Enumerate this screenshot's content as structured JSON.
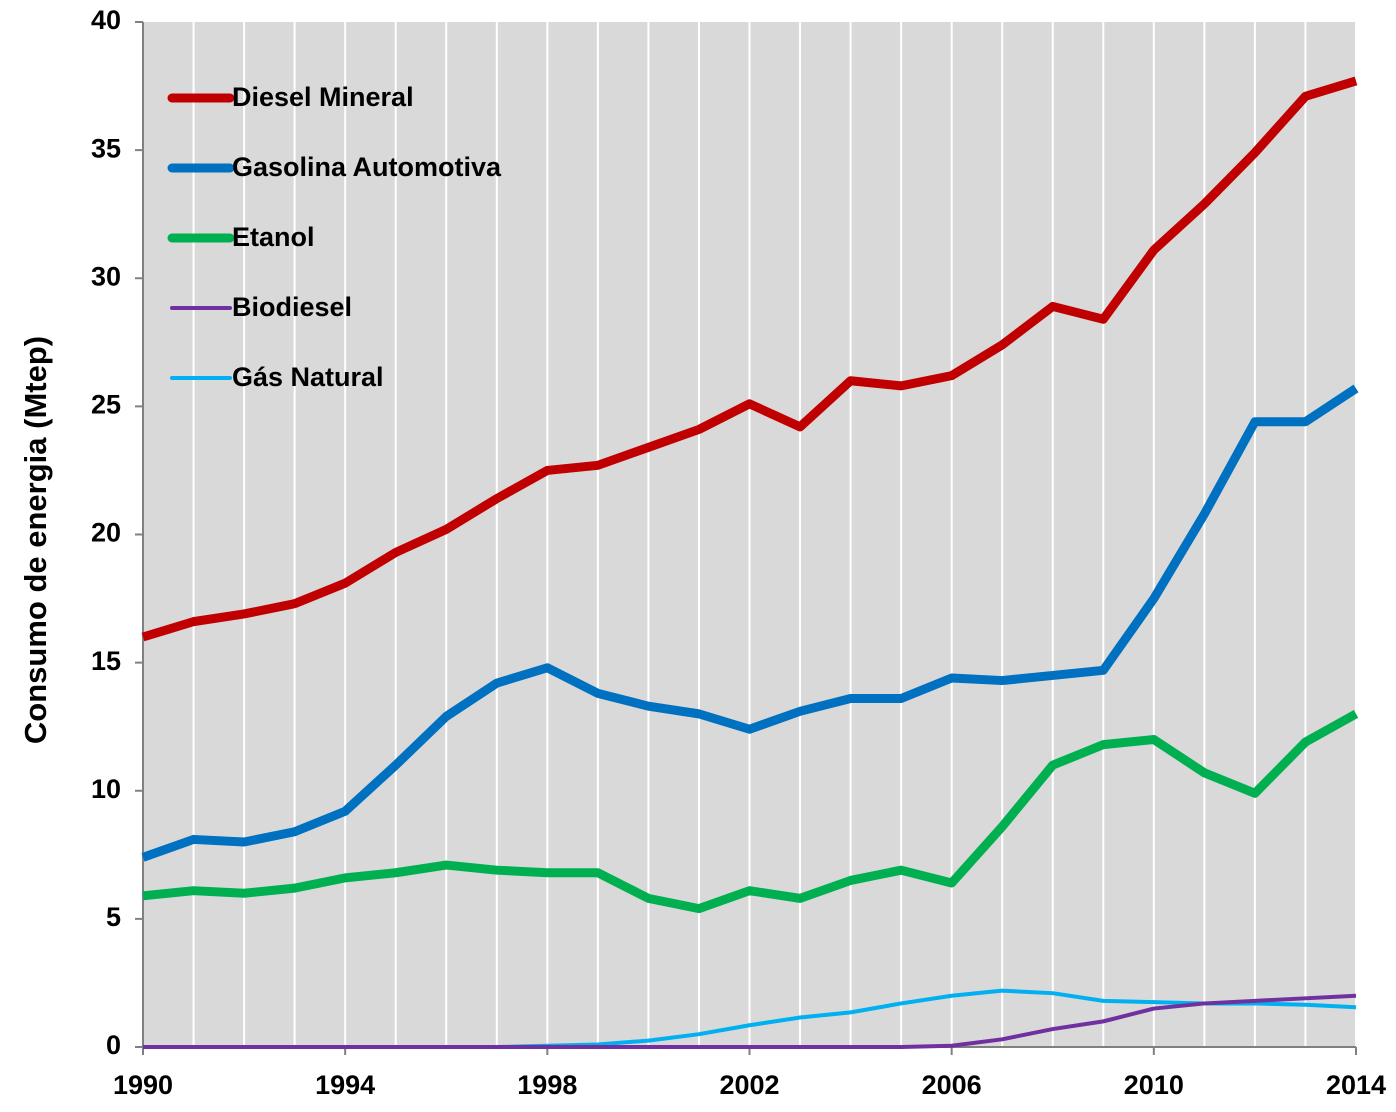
{
  "chart_data": {
    "type": "line",
    "y_label": "Consumo de energia (Mtep)",
    "x": [
      1990,
      1991,
      1992,
      1993,
      1994,
      1995,
      1996,
      1997,
      1998,
      1999,
      2000,
      2001,
      2002,
      2003,
      2004,
      2005,
      2006,
      2007,
      2008,
      2009,
      2010,
      2011,
      2012,
      2013,
      2014
    ],
    "series": [
      {
        "name": "Diesel Mineral",
        "color": "#c00000",
        "values": [
          16.0,
          16.6,
          16.9,
          17.3,
          18.1,
          19.3,
          20.2,
          21.4,
          22.5,
          22.7,
          23.4,
          24.1,
          25.1,
          24.2,
          26.0,
          25.8,
          26.2,
          27.4,
          28.9,
          28.4,
          31.1,
          32.9,
          34.9,
          37.1,
          37.7
        ]
      },
      {
        "name": "Gasolina Automotiva",
        "color": "#0070c0",
        "values": [
          7.4,
          8.1,
          8.0,
          8.4,
          9.2,
          11.0,
          12.9,
          14.2,
          14.8,
          13.8,
          13.3,
          13.0,
          12.4,
          13.1,
          13.6,
          13.6,
          14.4,
          14.3,
          14.5,
          14.7,
          17.5,
          20.8,
          24.4,
          24.4,
          25.7
        ]
      },
      {
        "name": "Etanol",
        "color": "#00b050",
        "values": [
          5.9,
          6.1,
          6.0,
          6.2,
          6.6,
          6.8,
          7.1,
          6.9,
          6.8,
          6.8,
          5.8,
          5.4,
          6.1,
          5.8,
          6.5,
          6.9,
          6.4,
          8.6,
          11.0,
          11.8,
          12.0,
          10.7,
          9.9,
          11.9,
          13.0
        ]
      },
      {
        "name": "Biodiesel",
        "color": "#7030a0",
        "values": [
          0,
          0,
          0,
          0,
          0,
          0,
          0,
          0,
          0,
          0,
          0,
          0,
          0,
          0,
          0,
          0,
          0.05,
          0.3,
          0.7,
          1.0,
          1.5,
          1.7,
          1.8,
          1.9,
          2.0
        ]
      },
      {
        "name": "Gás Natural",
        "color": "#00b0f0",
        "values": [
          0,
          0,
          0,
          0,
          0,
          0,
          0,
          0,
          0.05,
          0.1,
          0.25,
          0.5,
          0.85,
          1.15,
          1.35,
          1.7,
          2.0,
          2.2,
          2.1,
          1.8,
          1.75,
          1.7,
          1.7,
          1.65,
          1.55
        ]
      }
    ],
    "xlim": [
      1990,
      2014
    ],
    "xticks": [
      1990,
      1994,
      1998,
      2002,
      2006,
      2010,
      2014
    ],
    "ylim": [
      0,
      40
    ],
    "yticks": [
      0,
      5,
      10,
      15,
      20,
      25,
      30,
      35,
      40
    ],
    "grid": true,
    "legend": "upper left"
  }
}
